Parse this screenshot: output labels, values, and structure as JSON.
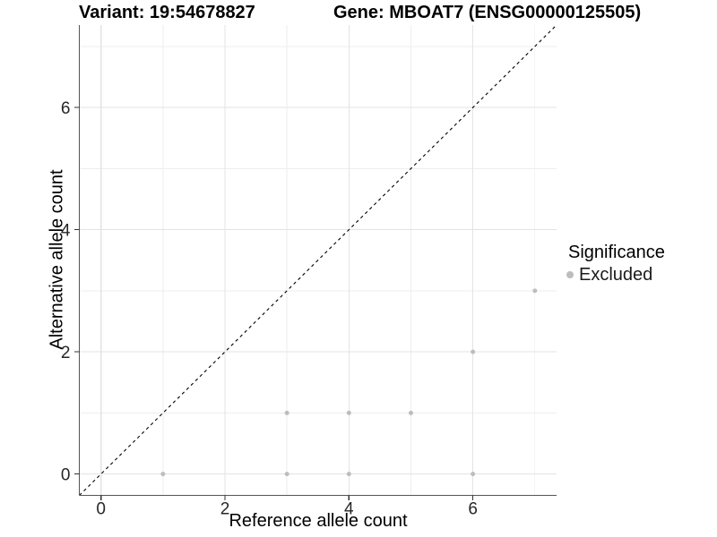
{
  "header": {
    "variant_label": "Variant: 19:54678827",
    "gene_label": "Gene: MBOAT7 (ENSG00000125505)"
  },
  "legend": {
    "title": "Significance",
    "items": [
      {
        "label": "Excluded",
        "color": "#bdbdbd",
        "marker": "circle"
      }
    ]
  },
  "chart_data": {
    "type": "scatter",
    "xlabel": "Reference allele count",
    "ylabel": "Alternative allele count",
    "xlim": [
      -0.35,
      7.35
    ],
    "ylim": [
      -0.35,
      7.35
    ],
    "x_ticks": [
      0,
      2,
      4,
      6
    ],
    "y_ticks": [
      0,
      2,
      4,
      6
    ],
    "x_minor_gridlines": [
      1,
      3,
      5,
      7
    ],
    "y_minor_gridlines": [
      1,
      3,
      5,
      7
    ],
    "grid": "major-and-minor",
    "legend_position": "right",
    "series": [
      {
        "name": "Excluded",
        "color": "#bdbdbd",
        "marker_radius": 2.5,
        "points": [
          [
            1,
            0
          ],
          [
            3,
            0
          ],
          [
            3,
            1
          ],
          [
            4,
            0
          ],
          [
            4,
            1
          ],
          [
            5,
            1
          ],
          [
            6,
            0
          ],
          [
            6,
            2
          ],
          [
            7,
            3
          ]
        ]
      }
    ],
    "reference_line": {
      "kind": "identity",
      "dashed": true,
      "color": "#000000"
    }
  },
  "colors": {
    "background": "#ffffff",
    "grid_major": "#e3e3e3",
    "grid_minor": "#eeeeee",
    "axis_line": "#555555",
    "tick_mark": "#333333",
    "tick_label": "#262626",
    "point": "#bdbdbd",
    "title_text": "#000000"
  }
}
